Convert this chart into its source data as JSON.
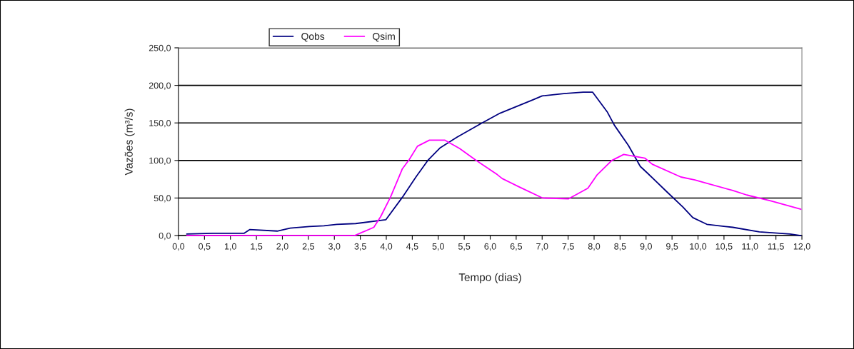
{
  "chart_data": {
    "type": "line",
    "xlabel": "Tempo (dias)",
    "ylabel": "Vazões (m³/s)",
    "series": [
      {
        "name": "Qobs",
        "color": "#000080",
        "x": [
          0.16,
          0.66,
          1.26,
          1.37,
          1.9,
          2.15,
          2.52,
          2.8,
          3.05,
          3.41,
          3.99,
          4.31,
          4.58,
          4.81,
          5.04,
          5.36,
          5.82,
          6.19,
          6.83,
          7.0,
          7.42,
          7.79,
          7.97,
          8.25,
          8.39,
          8.66,
          8.89,
          9.03,
          9.39,
          9.71,
          9.9,
          10.17,
          10.67,
          11.18,
          11.77,
          11.98
        ],
        "values": [
          2,
          3,
          3,
          8,
          6,
          10,
          12,
          13,
          15,
          16,
          21,
          51,
          79,
          101,
          117,
          131,
          149,
          163,
          181,
          186,
          189,
          191,
          191,
          165,
          147,
          120,
          92,
          83,
          59,
          38,
          24,
          15,
          11,
          5,
          2,
          0
        ]
      },
      {
        "name": "Qsim",
        "color": "#ff00ff",
        "x": [
          0.16,
          3.39,
          3.76,
          3.89,
          4.08,
          4.31,
          4.44,
          4.6,
          4.83,
          5.13,
          5.41,
          5.73,
          6.14,
          6.23,
          6.55,
          7.01,
          7.51,
          7.88,
          8.06,
          8.34,
          8.57,
          8.98,
          9.12,
          9.67,
          9.94,
          10.67,
          10.94,
          11.41,
          11.98
        ],
        "values": [
          0,
          0,
          11,
          25,
          51,
          89,
          101,
          119,
          127,
          127,
          116,
          100,
          81,
          76,
          65,
          50,
          49,
          63,
          81,
          100,
          108,
          103,
          95,
          78,
          74,
          60,
          54,
          46,
          35
        ]
      }
    ],
    "xlim": [
      0,
      12
    ],
    "xticks": [
      {
        "value": 0,
        "label": "0,0"
      },
      {
        "value": 0.5,
        "label": "0,5"
      },
      {
        "value": 1,
        "label": "1,0"
      },
      {
        "value": 1.5,
        "label": "1,5"
      },
      {
        "value": 2,
        "label": "2,0"
      },
      {
        "value": 2.5,
        "label": "2,5"
      },
      {
        "value": 3,
        "label": "3,0"
      },
      {
        "value": 3.5,
        "label": "3,5"
      },
      {
        "value": 4,
        "label": "4,0"
      },
      {
        "value": 4.5,
        "label": "4,5"
      },
      {
        "value": 5,
        "label": "5,0"
      },
      {
        "value": 5.5,
        "label": "5,5"
      },
      {
        "value": 6,
        "label": "6,0"
      },
      {
        "value": 6.5,
        "label": "6,5"
      },
      {
        "value": 7,
        "label": "7,0"
      },
      {
        "value": 7.5,
        "label": "7,5"
      },
      {
        "value": 8,
        "label": "8,0"
      },
      {
        "value": 8.5,
        "label": "8,5"
      },
      {
        "value": 9,
        "label": "9,0"
      },
      {
        "value": 9.5,
        "label": "9,5"
      },
      {
        "value": 10,
        "label": "10,0"
      },
      {
        "value": 10.5,
        "label": "10,5"
      },
      {
        "value": 11,
        "label": "11,0"
      },
      {
        "value": 11.5,
        "label": "11,5"
      },
      {
        "value": 12,
        "label": "12,0"
      }
    ],
    "ylim": [
      0,
      250
    ],
    "yticks": [
      {
        "value": 0,
        "label": "0,0"
      },
      {
        "value": 50,
        "label": "50,0"
      },
      {
        "value": 100,
        "label": "100,0"
      },
      {
        "value": 150,
        "label": "150,0"
      },
      {
        "value": 200,
        "label": "200,0"
      },
      {
        "value": 250,
        "label": "250,0"
      }
    ],
    "grid": "y",
    "legend": "top",
    "marker": "none",
    "line_style": "solid"
  }
}
